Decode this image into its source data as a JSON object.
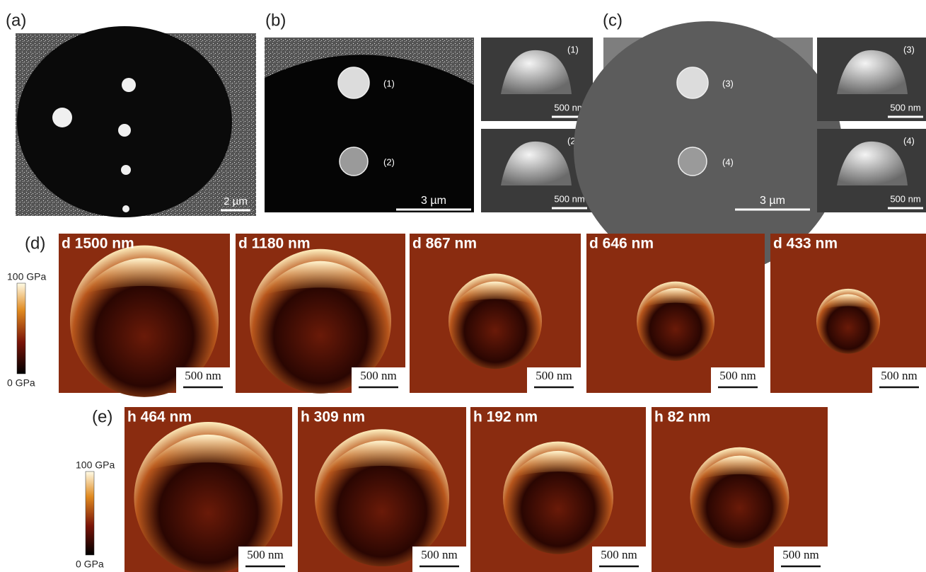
{
  "panel_a": {
    "label": "(a)",
    "scale": "2 µm"
  },
  "panel_b": {
    "label": "(b)",
    "markers": [
      "(1)",
      "(2)"
    ],
    "scale": "3 µm",
    "insets": [
      {
        "marker": "(1)",
        "scale": "500 nm"
      },
      {
        "marker": "(2)",
        "scale": "500 nm"
      }
    ]
  },
  "panel_c": {
    "label": "(c)",
    "markers": [
      "(3)",
      "(4)"
    ],
    "scale": "3 µm",
    "insets": [
      {
        "marker": "(3)",
        "scale": "500 nm"
      },
      {
        "marker": "(4)",
        "scale": "500 nm"
      }
    ]
  },
  "panel_d": {
    "label": "(d)",
    "colorbar": {
      "max": "100 GPa",
      "min": "0 GPa"
    },
    "maps": [
      {
        "title": "d 1500 nm",
        "scale": "500 nm"
      },
      {
        "title": "d 1180 nm",
        "scale": "500 nm"
      },
      {
        "title": "d 867 nm",
        "scale": "500 nm"
      },
      {
        "title": "d 646 nm",
        "scale": "500 nm"
      },
      {
        "title": "d 433 nm",
        "scale": "500 nm"
      }
    ]
  },
  "panel_e": {
    "label": "(e)",
    "colorbar": {
      "max": "100 GPa",
      "min": "0 GPa"
    },
    "maps": [
      {
        "title": "h 464 nm",
        "scale": "500 nm"
      },
      {
        "title": "h 309 nm",
        "scale": "500 nm"
      },
      {
        "title": "h 192 nm",
        "scale": "500 nm"
      },
      {
        "title": "h 82 nm",
        "scale": "500 nm"
      }
    ]
  }
}
